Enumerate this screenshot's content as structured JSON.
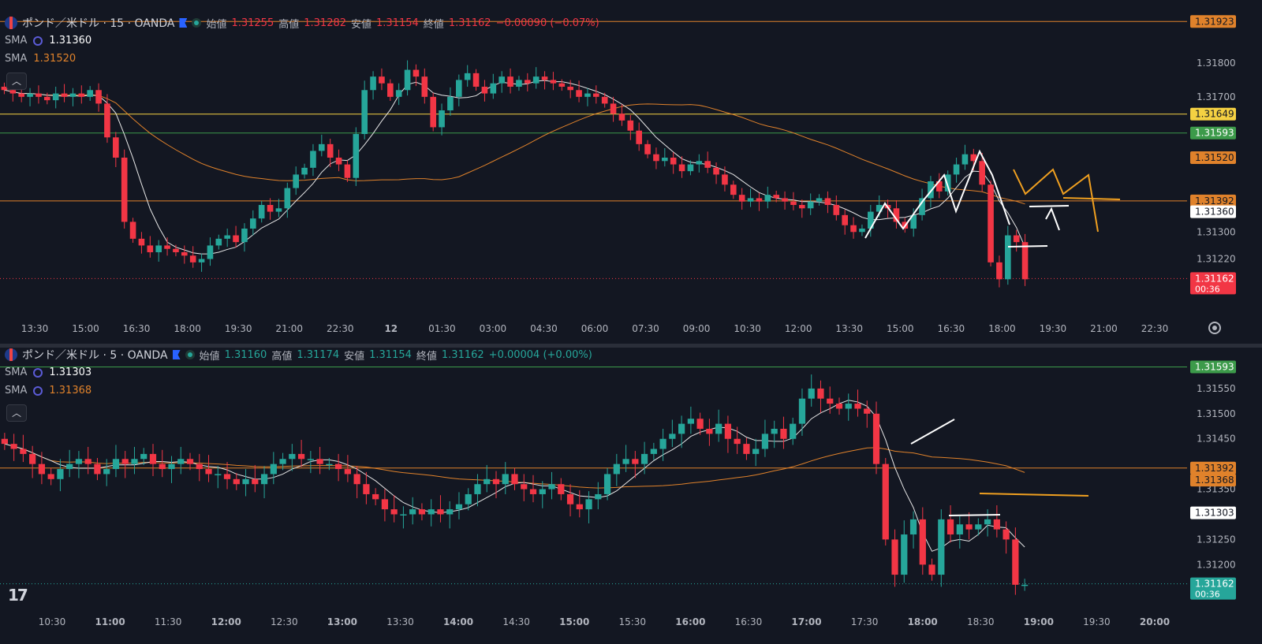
{
  "colors": {
    "bg": "#131722",
    "up": "#26a69a",
    "down": "#f23645",
    "grid": "#1e222d",
    "axisText": "#b2b5be",
    "sma_white": "#e6e6e6",
    "sma_orange": "#e0822b",
    "hl_yellow": "#f5d142",
    "hl_green": "#3c9a4a",
    "hl_orange": "#e0822b",
    "draw_white": "#ffffff",
    "draw_orange": "#f0a020"
  },
  "top": {
    "symbol": "ポンド／米ドル · 15 · OANDA",
    "open_label": "始値",
    "open": "1.31255",
    "high_label": "高値",
    "high": "1.31282",
    "low_label": "安値",
    "low": "1.31154",
    "close_label": "終値",
    "close": "1.31162",
    "change": "−0.00090 (−0.07%)",
    "sma1_label": "SMA",
    "sma1_value": "1.31360",
    "sma2_label": "SMA",
    "sma2_value": "1.31520",
    "collapse_icon": "chevron-up-icon",
    "countdown": "00:36"
  },
  "bottom": {
    "symbol": "ポンド／米ドル · 5 · OANDA",
    "open_label": "始値",
    "open": "1.31160",
    "high_label": "高値",
    "high": "1.31174",
    "low_label": "安値",
    "low": "1.31154",
    "close_label": "終値",
    "close": "1.31162",
    "change": "+0.00004 (+0.00%)",
    "sma1_label": "SMA",
    "sma1_value": "1.31303",
    "sma2_label": "SMA",
    "sma2_value": "1.31368",
    "collapse_icon": "chevron-up-icon",
    "countdown": "00:36"
  },
  "chart_data": [
    {
      "type": "candlestick",
      "title": "ポンド／米ドル · 15 · OANDA",
      "x_ticks": [
        "13:30",
        "15:00",
        "16:30",
        "18:00",
        "19:30",
        "21:00",
        "22:30",
        "12",
        "01:30",
        "03:00",
        "04:30",
        "06:00",
        "07:30",
        "09:00",
        "10:30",
        "12:00",
        "13:30",
        "15:00",
        "16:30",
        "18:00",
        "19:30",
        "21:00",
        "22:30"
      ],
      "y_ticks": [
        "1.31800",
        "1.31700",
        "1.31300",
        "1.31220"
      ],
      "ylim": [
        1.311,
        1.3194
      ],
      "price_labels": [
        {
          "value": 1.31923,
          "text": "1.31923",
          "color": "#e0822b"
        },
        {
          "value": 1.31649,
          "text": "1.31649",
          "color": "#f5d142"
        },
        {
          "value": 1.31593,
          "text": "1.31593",
          "color": "#3c9a4a"
        },
        {
          "value": 1.3152,
          "text": "1.31520",
          "color": "#e0822b"
        },
        {
          "value": 1.31392,
          "text": "1.31392",
          "color": "#e0822b"
        },
        {
          "value": 1.3136,
          "text": "1.31360",
          "color": "#ffffff"
        },
        {
          "value": 1.31162,
          "text": "1.31162",
          "color": "#f23645"
        }
      ],
      "hlines": [
        {
          "value": 1.31923,
          "color": "#e0822b"
        },
        {
          "value": 1.31649,
          "color": "#f5d142"
        },
        {
          "value": 1.31593,
          "color": "#3c9a4a"
        },
        {
          "value": 1.31392,
          "color": "#e0822b"
        },
        {
          "value": 1.31162,
          "color": "#f23645",
          "dotted": true
        }
      ],
      "close_path": [
        1.3172,
        1.3171,
        1.317,
        1.3171,
        1.317,
        1.3169,
        1.3171,
        1.317,
        1.3171,
        1.317,
        1.3172,
        1.3168,
        1.3158,
        1.3152,
        1.3133,
        1.3128,
        1.3126,
        1.3124,
        1.3126,
        1.3125,
        1.3124,
        1.3123,
        1.3121,
        1.3122,
        1.3126,
        1.3128,
        1.3129,
        1.3127,
        1.3131,
        1.3134,
        1.3138,
        1.3136,
        1.3137,
        1.3143,
        1.3147,
        1.3149,
        1.3154,
        1.3156,
        1.3152,
        1.315,
        1.3146,
        1.3159,
        1.3172,
        1.3176,
        1.3174,
        1.317,
        1.3172,
        1.3178,
        1.3176,
        1.317,
        1.3161,
        1.3166,
        1.317,
        1.3175,
        1.3177,
        1.3173,
        1.3171,
        1.3174,
        1.3176,
        1.3173,
        1.3175,
        1.3174,
        1.3176,
        1.3175,
        1.3174,
        1.3173,
        1.3172,
        1.317,
        1.3171,
        1.317,
        1.3168,
        1.3165,
        1.3163,
        1.316,
        1.3156,
        1.3153,
        1.3151,
        1.3152,
        1.315,
        1.3148,
        1.315,
        1.3151,
        1.3149,
        1.3147,
        1.3144,
        1.3141,
        1.3139,
        1.314,
        1.3139,
        1.3141,
        1.314,
        1.3139,
        1.3138,
        1.3137,
        1.3139,
        1.314,
        1.3138,
        1.3135,
        1.3132,
        1.313,
        1.3131,
        1.3136,
        1.3138,
        1.3137,
        1.3133,
        1.3131,
        1.3135,
        1.314,
        1.3145,
        1.3142,
        1.3147,
        1.315,
        1.3153,
        1.3151,
        1.3144,
        1.3121,
        1.3116,
        1.3129,
        1.3127,
        1.3116
      ],
      "series": [
        {
          "name": "SMA",
          "value": 1.3136
        },
        {
          "name": "SMA",
          "value": 1.3152
        }
      ]
    },
    {
      "type": "candlestick",
      "title": "ポンド／米ドル · 5 · OANDA",
      "x_ticks": [
        "10:30",
        "11:00",
        "11:30",
        "12:00",
        "12:30",
        "13:00",
        "13:30",
        "14:00",
        "14:30",
        "15:00",
        "15:30",
        "16:00",
        "16:30",
        "17:00",
        "17:30",
        "18:00",
        "18:30",
        "19:00",
        "19:30",
        "20:00"
      ],
      "y_ticks": [
        "1.31550",
        "1.31500",
        "1.31450",
        "1.31350",
        "1.31250",
        "1.31200"
      ],
      "ylim": [
        1.3113,
        1.316
      ],
      "price_labels": [
        {
          "value": 1.31593,
          "text": "1.31593",
          "color": "#3c9a4a"
        },
        {
          "value": 1.31392,
          "text": "1.31392",
          "color": "#e0822b"
        },
        {
          "value": 1.31368,
          "text": "1.31368",
          "color": "#e0822b"
        },
        {
          "value": 1.31303,
          "text": "1.31303",
          "color": "#ffffff"
        },
        {
          "value": 1.31162,
          "text": "1.31162",
          "color": "#26a69a"
        }
      ],
      "hlines": [
        {
          "value": 1.31593,
          "color": "#3c9a4a"
        },
        {
          "value": 1.31392,
          "color": "#e0822b"
        },
        {
          "value": 1.31162,
          "color": "#26a69a",
          "dotted": true
        }
      ],
      "close_path": [
        1.3144,
        1.3143,
        1.3142,
        1.314,
        1.3138,
        1.3137,
        1.3139,
        1.314,
        1.3141,
        1.314,
        1.3138,
        1.3139,
        1.3141,
        1.314,
        1.3141,
        1.3142,
        1.314,
        1.3139,
        1.314,
        1.3141,
        1.314,
        1.3139,
        1.3138,
        1.3138,
        1.3137,
        1.3136,
        1.3137,
        1.3136,
        1.3138,
        1.314,
        1.3141,
        1.3142,
        1.3141,
        1.3141,
        1.314,
        1.314,
        1.3139,
        1.3138,
        1.3136,
        1.3134,
        1.3133,
        1.3131,
        1.313,
        1.313,
        1.3131,
        1.313,
        1.3131,
        1.313,
        1.3131,
        1.3132,
        1.3134,
        1.3136,
        1.3137,
        1.3136,
        1.3138,
        1.3136,
        1.3135,
        1.3134,
        1.3135,
        1.3136,
        1.3134,
        1.3132,
        1.3131,
        1.3133,
        1.3134,
        1.3138,
        1.314,
        1.3141,
        1.314,
        1.3142,
        1.3143,
        1.3145,
        1.3146,
        1.3148,
        1.3149,
        1.3147,
        1.3146,
        1.3148,
        1.3145,
        1.3144,
        1.3142,
        1.3143,
        1.3146,
        1.3147,
        1.3145,
        1.3148,
        1.3153,
        1.3155,
        1.3153,
        1.3152,
        1.3151,
        1.3152,
        1.3151,
        1.315,
        1.314,
        1.3125,
        1.3118,
        1.3126,
        1.3129,
        1.312,
        1.3118,
        1.3129,
        1.3126,
        1.3128,
        1.3127,
        1.3128,
        1.3129,
        1.3127,
        1.3125,
        1.3116,
        1.3116
      ],
      "series": [
        {
          "name": "SMA",
          "value": 1.31303
        },
        {
          "name": "SMA",
          "value": 1.31368
        }
      ]
    }
  ]
}
